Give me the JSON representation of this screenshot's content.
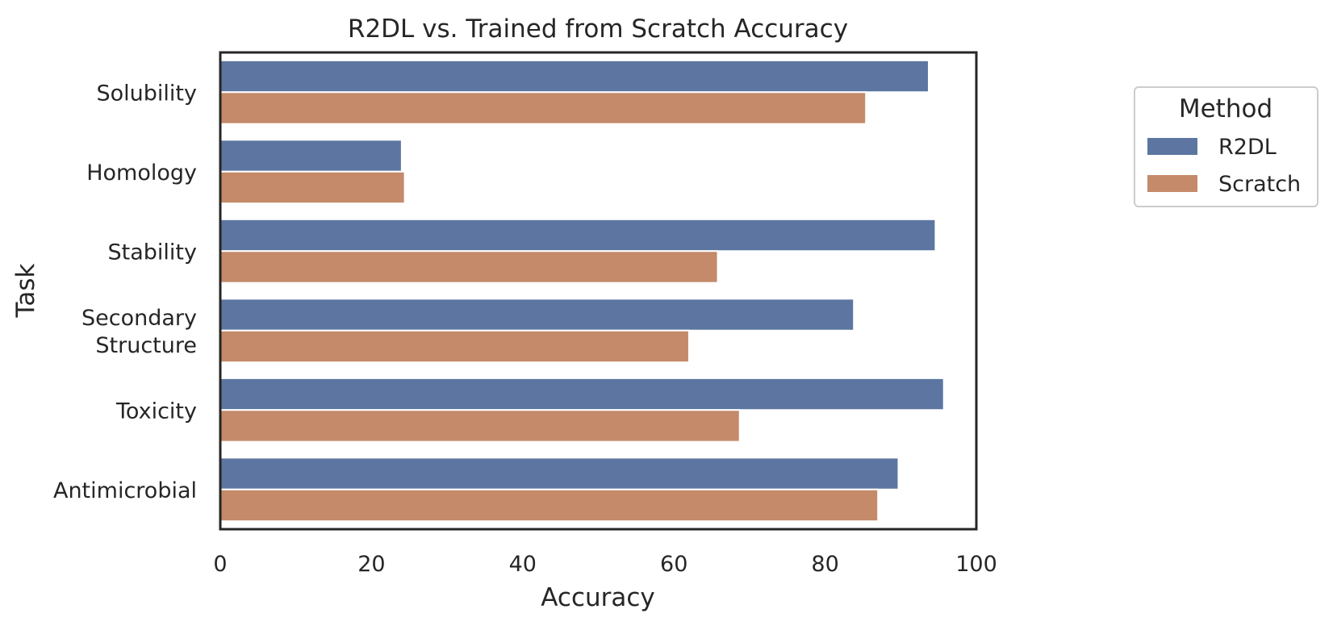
{
  "chart_data": {
    "type": "bar",
    "orientation": "horizontal",
    "title": "R2DL vs. Trained from Scratch Accuracy",
    "xlabel": "Accuracy",
    "ylabel": "Task",
    "xlim": [
      0,
      100
    ],
    "xticks": [
      0,
      20,
      40,
      60,
      80,
      100
    ],
    "categories": [
      "Solubility",
      "Homology",
      "Stability",
      "Secondary\nStructure",
      "Toxicity",
      "Antimicrobial"
    ],
    "series": [
      {
        "name": "R2DL",
        "color": "#5c76a1",
        "values": [
          93.7,
          24.0,
          94.6,
          83.8,
          95.7,
          89.7
        ]
      },
      {
        "name": "Scratch",
        "color": "#c48a6a",
        "values": [
          85.4,
          24.4,
          65.8,
          62.0,
          68.7,
          87.0
        ]
      }
    ],
    "grid": false,
    "legend": {
      "title": "Method",
      "placement": "right"
    }
  }
}
